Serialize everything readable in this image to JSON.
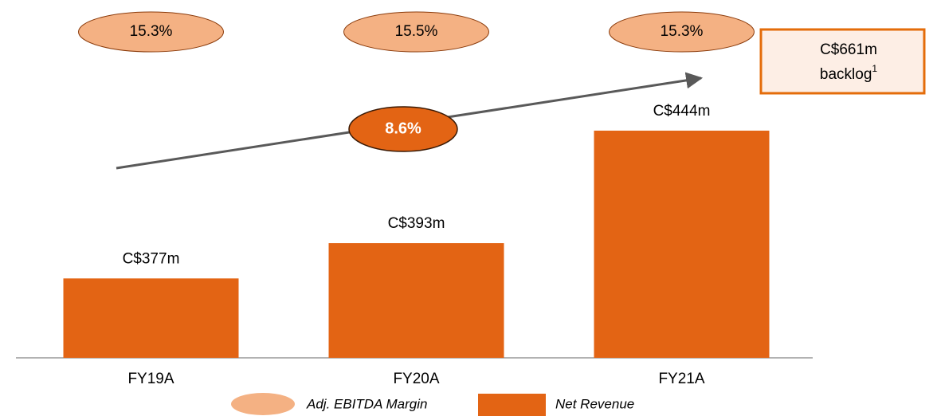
{
  "chart_data": {
    "type": "bar",
    "categories": [
      "FY19A",
      "FY20A",
      "FY21A"
    ],
    "series": [
      {
        "name": "Net Revenue",
        "color": "#e36414",
        "values": [
          377,
          393,
          444
        ],
        "value_labels": [
          "C$377m",
          "C$393m",
          "C$444m"
        ]
      },
      {
        "name": "Adj. EBITDA Margin",
        "color": "#f4b183",
        "values": [
          15.3,
          15.5,
          15.3
        ],
        "value_labels": [
          "15.3%",
          "15.5%",
          "15.3%"
        ]
      }
    ],
    "ylim": [
      341,
      496
    ],
    "cagr": {
      "value": 8.6,
      "label": "8.6%",
      "color": "#e36414"
    },
    "backlog": {
      "value": 661,
      "label": "C$661m",
      "text": "backlog",
      "footnote": "1"
    }
  }
}
